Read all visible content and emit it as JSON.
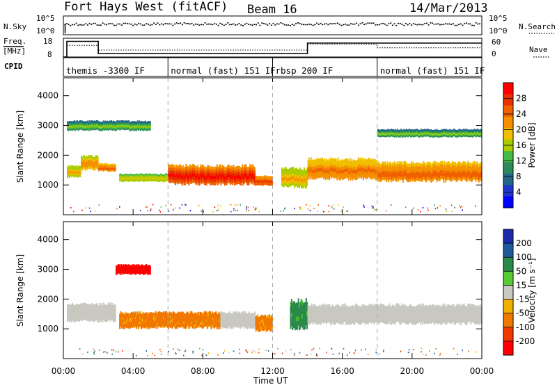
{
  "header": {
    "radar": "Fort Hays West (fitACF)",
    "beam": "Beam 16",
    "date": "14/Mar/2013"
  },
  "noise_panel": {
    "left_label": "N.Sky",
    "left_ticks": [
      "10^5",
      "10^0"
    ],
    "right_label": "N.Search",
    "right_ticks": [
      "10^5",
      "10^0"
    ]
  },
  "freq_panel": {
    "left_label_top": "Freq.",
    "left_label_bottom": "[MHz]",
    "left_ticks": [
      "18",
      "8"
    ],
    "right_label": "Nave",
    "right_ticks": [
      "60",
      "0"
    ],
    "freq_steps": [
      {
        "from": 0.0,
        "to": 0.2,
        "value": 8
      },
      {
        "from": 0.2,
        "to": 2.0,
        "value": 17
      },
      {
        "from": 2.0,
        "to": 14.0,
        "value": 10
      },
      {
        "from": 14.0,
        "to": 24.0,
        "value": 16
      }
    ],
    "nave_steps": [
      {
        "from": 0.2,
        "to": 2.0,
        "value": 40
      },
      {
        "from": 2.0,
        "to": 14.0,
        "value": 24
      },
      {
        "from": 14.0,
        "to": 18.0,
        "value": 44
      },
      {
        "from": 18.0,
        "to": 24.0,
        "value": 32
      }
    ]
  },
  "cpid": {
    "label": "CPID",
    "segments": [
      {
        "start": 0,
        "end": 6,
        "text": "themis -3300 IF"
      },
      {
        "start": 6,
        "end": 12,
        "text": "normal (fast) 151 IF"
      },
      {
        "start": 12,
        "end": 18,
        "text": "rbsp 200 IF"
      },
      {
        "start": 18,
        "end": 24,
        "text": "normal (fast) 151 IF"
      }
    ]
  },
  "power_panel": {
    "ylabel": "Slant Range [km]",
    "yticks": [
      "4000",
      "3000",
      "2000",
      "1000"
    ],
    "colorbar_label": "Power [dB]",
    "colorbar_ticks": [
      "28",
      "24",
      "20",
      "16",
      "12",
      "8",
      "4"
    ],
    "colors": [
      "#0000ff",
      "#2233cc",
      "#226688",
      "#2a8a5a",
      "#44bb44",
      "#aacc00",
      "#f0c000",
      "#f59000",
      "#f06000",
      "#e83000",
      "#ff0000"
    ]
  },
  "velocity_panel": {
    "ylabel": "Slant Range [km]",
    "yticks": [
      "4000",
      "3000",
      "2000",
      "1000"
    ],
    "colorbar_label": "Velocity [m s⁻¹]",
    "colorbar_ticks": [
      "200",
      "100",
      "50",
      "15",
      "-15",
      "-50",
      "-100",
      "-200"
    ],
    "colors": [
      "#1a2aaa",
      "#1f5a9a",
      "#2a8a4a",
      "#55cc33",
      "#c8c8c0",
      "#f0b000",
      "#f07800",
      "#f03800",
      "#ff0000"
    ]
  },
  "x_axis": {
    "ticks": [
      "00:00",
      "04:00",
      "08:00",
      "12:00",
      "16:00",
      "20:00",
      "00:00"
    ],
    "label": "Time UT"
  },
  "chart_data": [
    {
      "type": "heatmap",
      "title": "Power",
      "xlabel": "Time UT",
      "ylabel": "Slant Range [km]",
      "xlim": [
        0,
        24
      ],
      "ylim": [
        0,
        4600
      ],
      "clim": [
        0,
        30
      ],
      "colorbar": "Power [dB]",
      "regions": [
        {
          "t0": 0.2,
          "t1": 1.0,
          "r_center": 1450,
          "r_halfwidth": 180,
          "power": 14
        },
        {
          "t0": 1.0,
          "t1": 2.0,
          "r_center": 1750,
          "r_halfwidth": 220,
          "power": 16
        },
        {
          "t0": 2.0,
          "t1": 3.0,
          "r_center": 1600,
          "r_halfwidth": 120,
          "power": 18
        },
        {
          "t0": 3.2,
          "t1": 6.0,
          "r_center": 1250,
          "r_halfwidth": 120,
          "power": 12
        },
        {
          "t0": 6.0,
          "t1": 11.0,
          "r_center": 1350,
          "r_halfwidth": 300,
          "power": 22
        },
        {
          "t0": 11.0,
          "t1": 12.0,
          "r_center": 1150,
          "r_halfwidth": 150,
          "power": 20
        },
        {
          "t0": 12.5,
          "t1": 14.0,
          "r_center": 1250,
          "r_halfwidth": 300,
          "power": 14
        },
        {
          "t0": 14.0,
          "t1": 18.0,
          "r_center": 1550,
          "r_halfwidth": 320,
          "power": 17
        },
        {
          "t0": 18.0,
          "t1": 24.0,
          "r_center": 1450,
          "r_halfwidth": 300,
          "power": 18
        },
        {
          "t0": 0.2,
          "t1": 5.0,
          "r_center": 3000,
          "r_halfwidth": 150,
          "power": 8
        },
        {
          "t0": 18.0,
          "t1": 24.0,
          "r_center": 2750,
          "r_halfwidth": 120,
          "power": 8
        }
      ]
    },
    {
      "type": "heatmap",
      "title": "Velocity",
      "xlabel": "Time UT",
      "ylabel": "Slant Range [km]",
      "xlim": [
        0,
        24
      ],
      "ylim": [
        0,
        4600
      ],
      "clim": [
        -200,
        200
      ],
      "colorbar": "Velocity [m s⁻¹]",
      "regions": [
        {
          "t0": 0.2,
          "t1": 3.0,
          "r_center": 1550,
          "r_halfwidth": 280,
          "velocity": 0
        },
        {
          "t0": 3.2,
          "t1": 9.0,
          "r_center": 1300,
          "r_halfwidth": 250,
          "velocity": -40
        },
        {
          "t0": 9.0,
          "t1": 11.0,
          "r_center": 1300,
          "r_halfwidth": 250,
          "velocity": 0
        },
        {
          "t0": 11.0,
          "t1": 12.0,
          "r_center": 1200,
          "r_halfwidth": 250,
          "velocity": -40
        },
        {
          "t0": 13.0,
          "t1": 14.0,
          "r_center": 1500,
          "r_halfwidth": 450,
          "velocity": 40
        },
        {
          "t0": 14.0,
          "t1": 24.0,
          "r_center": 1500,
          "r_halfwidth": 300,
          "velocity": 0
        },
        {
          "t0": 3.0,
          "t1": 5.0,
          "r_center": 3000,
          "r_halfwidth": 150,
          "velocity": -180
        }
      ]
    }
  ]
}
